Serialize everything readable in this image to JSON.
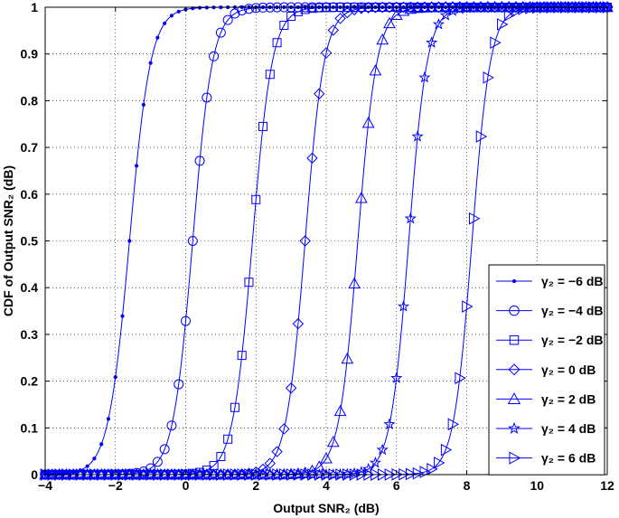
{
  "chart_data": {
    "type": "line",
    "xlabel": "Output SNR₂ (dB)",
    "ylabel": "CDF of Output SNR₂ (dB)",
    "xlim": [
      -4,
      12
    ],
    "ylim": [
      0,
      1
    ],
    "xticks": [
      -4,
      -2,
      0,
      2,
      4,
      6,
      8,
      10,
      12
    ],
    "yticks": [
      0,
      0.1,
      0.2,
      0.3,
      0.4,
      0.5,
      0.6,
      0.7,
      0.8,
      0.9,
      1
    ],
    "grid": true,
    "legend_position": "bottom-right",
    "line_color": "#0000ff",
    "series": [
      {
        "name": "γ₂ = −6 dB",
        "marker": "dot",
        "median": -1.6,
        "spread": 0.3
      },
      {
        "name": "γ₂ = −4 dB",
        "marker": "circle",
        "median": 0.2,
        "spread": 0.28
      },
      {
        "name": "γ₂ = −2 dB",
        "marker": "square",
        "median": 1.9,
        "spread": 0.28
      },
      {
        "name": "γ₂ = 0 dB",
        "marker": "diamond",
        "median": 3.4,
        "spread": 0.27
      },
      {
        "name": "γ₂ = 2 dB",
        "marker": "triangle-up",
        "median": 4.9,
        "spread": 0.27
      },
      {
        "name": "γ₂ = 4 dB",
        "marker": "star",
        "median": 6.35,
        "spread": 0.26
      },
      {
        "name": "γ₂ = 6 dB",
        "marker": "triangle-right",
        "median": 8.15,
        "spread": 0.26
      }
    ]
  }
}
